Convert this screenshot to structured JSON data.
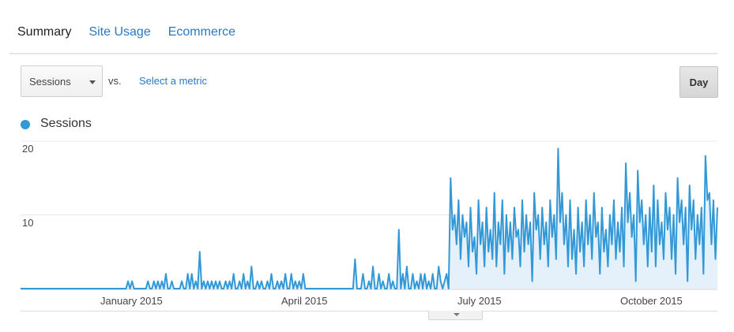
{
  "tabs": [
    {
      "label": "Summary"
    },
    {
      "label": "Site Usage"
    },
    {
      "label": "Ecommerce"
    }
  ],
  "toolbar": {
    "metric_select_value": "Sessions",
    "vs_label": "vs.",
    "select_metric_link": "Select a metric",
    "day_button_label": "Day"
  },
  "colors": {
    "series": "#3398d6",
    "area_fill": "#e5f1fa",
    "link": "#2b78c2"
  },
  "chart_data": {
    "type": "area",
    "title": "",
    "xlabel": "",
    "ylabel": "",
    "ylim": [
      0,
      20
    ],
    "y_ticks": [
      "20",
      "10"
    ],
    "x_tick_labels": [
      "January 2015",
      "April 2015",
      "July 2015",
      "October 2015"
    ],
    "grid": true,
    "legend_position": "top-left",
    "x_range": [
      "2014-11-09",
      "2015-11-24"
    ],
    "series": [
      {
        "name": "Sessions",
        "values": [
          0,
          0,
          0,
          0,
          0,
          0,
          0,
          0,
          0,
          0,
          0,
          0,
          0,
          0,
          0,
          0,
          0,
          0,
          0,
          0,
          0,
          0,
          0,
          0,
          0,
          0,
          0,
          0,
          0,
          0,
          0,
          0,
          0,
          0,
          0,
          0,
          0,
          0,
          0,
          0,
          0,
          0,
          0,
          0,
          0,
          0,
          0,
          0,
          0,
          0,
          0,
          0,
          0,
          0,
          1,
          0,
          1,
          0,
          0,
          0,
          0,
          0,
          0,
          0,
          1,
          0,
          0,
          1,
          0,
          1,
          0,
          1,
          0,
          2,
          0,
          0,
          1,
          0,
          0,
          0,
          0,
          1,
          0,
          0,
          2,
          0,
          2,
          0,
          1,
          0,
          5,
          0,
          1,
          0,
          1,
          0,
          1,
          0,
          1,
          0,
          1,
          0,
          0,
          1,
          0,
          1,
          0,
          2,
          0,
          0,
          1,
          0,
          2,
          0,
          1,
          0,
          3,
          0,
          0,
          1,
          0,
          1,
          0,
          0,
          1,
          0,
          2,
          0,
          0,
          1,
          0,
          1,
          0,
          2,
          0,
          0,
          2,
          0,
          1,
          0,
          1,
          0,
          2,
          0,
          0,
          0,
          0,
          0,
          0,
          0,
          0,
          0,
          0,
          0,
          0,
          0,
          0,
          0,
          0,
          0,
          0,
          0,
          0,
          0,
          0,
          0,
          0,
          0,
          4,
          0,
          0,
          0,
          2,
          0,
          0,
          1,
          0,
          3,
          0,
          0,
          2,
          0,
          1,
          0,
          0,
          2,
          0,
          1,
          0,
          0,
          8,
          0,
          2,
          0,
          3,
          0,
          0,
          2,
          0,
          1,
          0,
          2,
          0,
          2,
          0,
          1,
          0,
          2,
          0,
          0,
          3,
          1,
          0,
          1,
          2,
          0,
          15,
          8,
          10,
          6,
          12,
          4,
          10,
          7,
          9,
          3,
          11,
          5,
          7,
          2,
          12,
          6,
          9,
          3,
          11,
          5,
          8,
          4,
          13,
          3,
          9,
          6,
          12,
          2,
          10,
          5,
          9,
          4,
          11,
          7,
          8,
          3,
          12,
          5,
          10,
          6,
          9,
          1,
          13,
          8,
          10,
          4,
          11,
          6,
          9,
          3,
          12,
          7,
          10,
          4,
          19,
          9,
          13,
          6,
          10,
          3,
          12,
          4,
          8,
          2,
          11,
          5,
          9,
          3,
          12,
          6,
          10,
          4,
          13,
          7,
          9,
          2,
          11,
          5,
          8,
          3,
          10,
          6,
          12,
          4,
          9,
          5,
          11,
          3,
          17,
          9,
          13,
          7,
          10,
          1,
          16,
          9,
          12,
          6,
          10,
          3,
          11,
          5,
          14,
          3,
          12,
          6,
          9,
          4,
          13,
          8,
          11,
          4,
          10,
          2,
          15,
          9,
          12,
          6,
          11,
          1,
          14,
          8,
          12,
          4,
          10,
          6,
          11,
          2,
          18,
          12,
          13,
          6,
          12,
          4,
          11
        ]
      }
    ]
  }
}
